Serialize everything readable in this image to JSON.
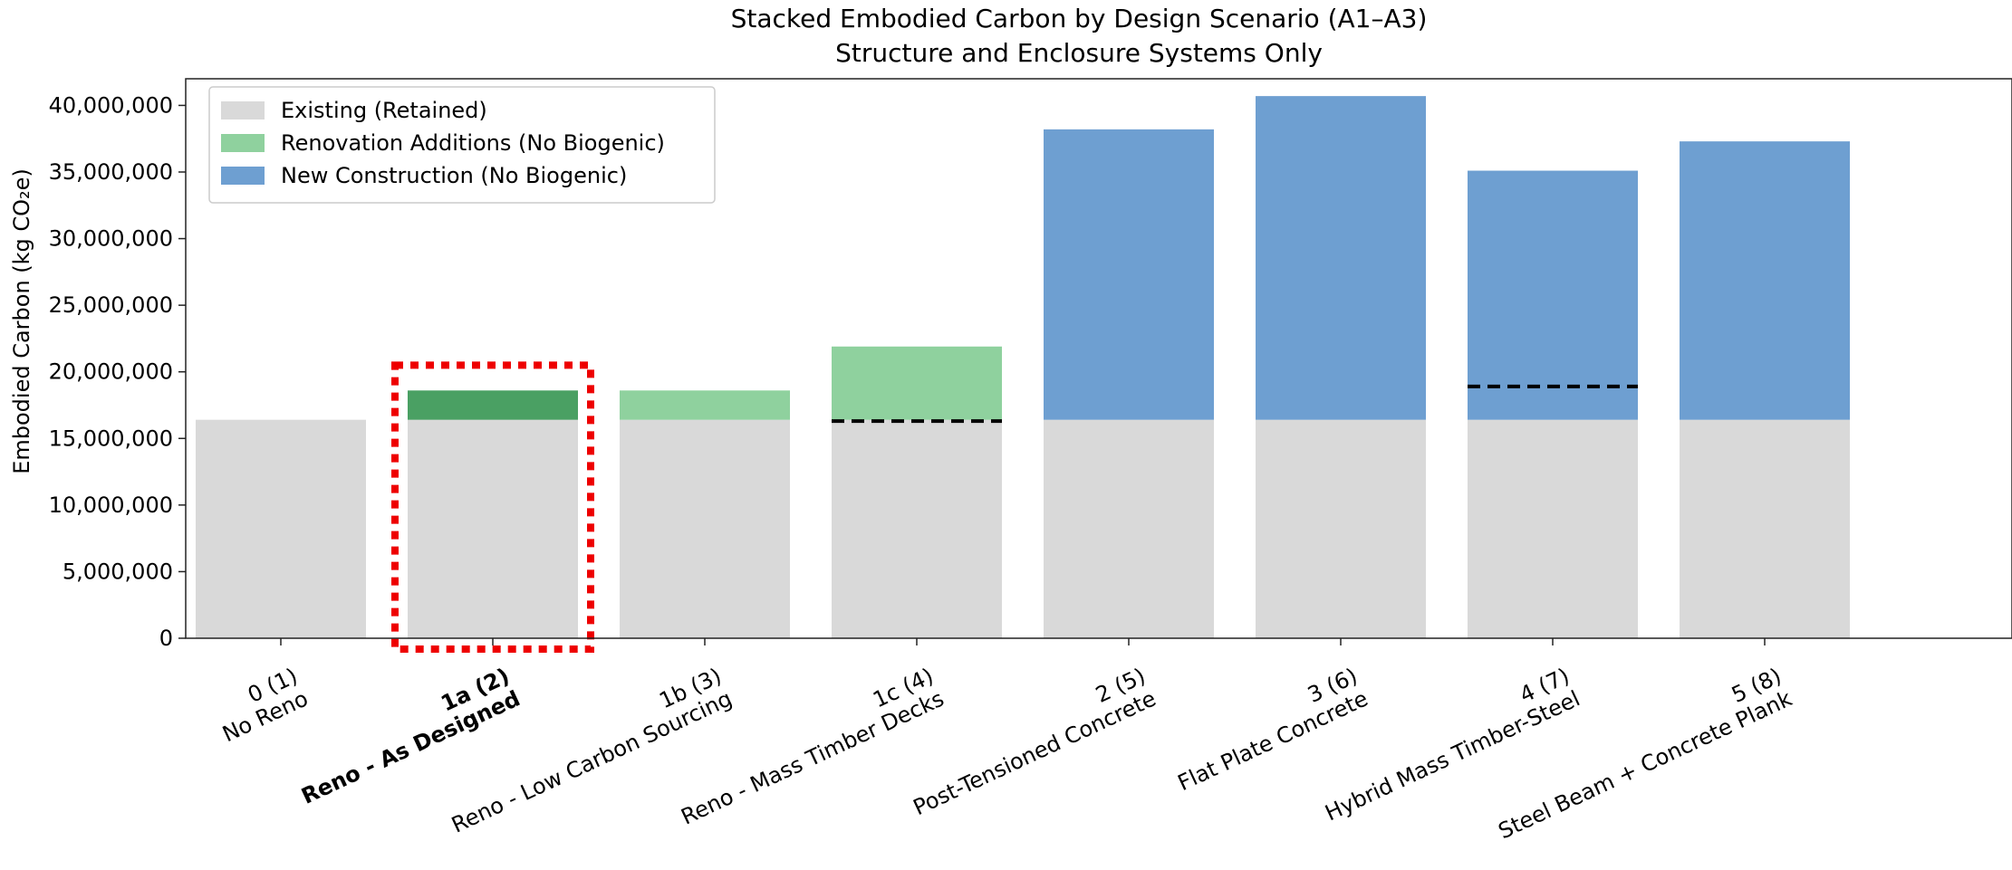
{
  "chart_data": {
    "type": "bar",
    "stacked": true,
    "title": "Stacked Embodied Carbon by Design Scenario (A1–A3)",
    "subtitle": "Structure and Enclosure Systems Only",
    "ylabel": "Embodied Carbon (kg CO₂e)",
    "xlabel": "",
    "ylim": [
      0,
      42000000
    ],
    "yticks": [
      0,
      5000000,
      10000000,
      15000000,
      20000000,
      25000000,
      30000000,
      35000000,
      40000000
    ],
    "ytick_labels": [
      "0",
      "5,000,000",
      "10,000,000",
      "15,000,000",
      "20,000,000",
      "25,000,000",
      "30,000,000",
      "35,000,000",
      "40,000,000"
    ],
    "grid": false,
    "legend_position": "top-left",
    "categories": [
      {
        "line1": "0 (1)",
        "line2": "No Reno",
        "bold": false
      },
      {
        "line1": "1a (2)",
        "line2": "Reno - As Designed",
        "bold": true
      },
      {
        "line1": "1b (3)",
        "line2": "Reno - Low Carbon Sourcing",
        "bold": false
      },
      {
        "line1": "1c (4)",
        "line2": "Reno - Mass Timber Decks",
        "bold": false
      },
      {
        "line1": "2 (5)",
        "line2": "Post-Tensioned Concrete",
        "bold": false
      },
      {
        "line1": "3 (6)",
        "line2": "Flat Plate Concrete",
        "bold": false
      },
      {
        "line1": "4 (7)",
        "line2": "Hybrid Mass Timber-Steel",
        "bold": false
      },
      {
        "line1": "5 (8)",
        "line2": "Steel Beam + Concrete Plank",
        "bold": false
      }
    ],
    "series": [
      {
        "name": "Existing (Retained)",
        "color": "#d9d9d9",
        "values": [
          16400000,
          16400000,
          16400000,
          16400000,
          16400000,
          16400000,
          16400000,
          16400000
        ]
      },
      {
        "name": "Renovation Additions (No Biogenic)",
        "color": "#8fd19e",
        "values": [
          0,
          2200000,
          2200000,
          5500000,
          0,
          0,
          0,
          0
        ]
      },
      {
        "name": "New Construction (No Biogenic)",
        "color": "#6e9fd1",
        "values": [
          0,
          0,
          0,
          0,
          21800000,
          24300000,
          18700000,
          20900000
        ]
      }
    ],
    "highlight": {
      "category_index": 1,
      "renovation_color": "#4aa063",
      "box_color": "#ee0000"
    },
    "dashed_lines": [
      {
        "category_index": 3,
        "value": 16300000
      },
      {
        "category_index": 6,
        "value": 18900000
      }
    ]
  }
}
